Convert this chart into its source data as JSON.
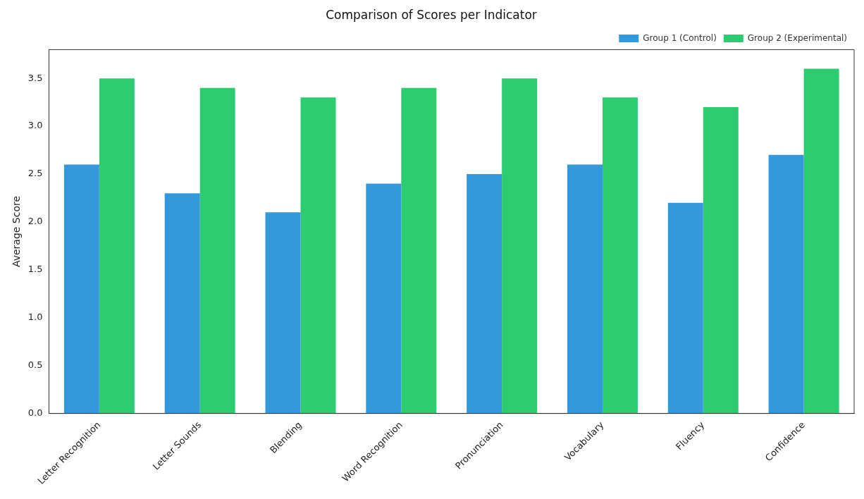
{
  "chart_data": {
    "type": "bar",
    "title": "Comparison of Scores per Indicator",
    "ylabel": "Average Score",
    "categories": [
      "Letter Recognition",
      "Letter Sounds",
      "Blending",
      "Word Recognition",
      "Pronunciation",
      "Vocabulary",
      "Fluency",
      "Confidence"
    ],
    "series": [
      {
        "name": "Group 1 (Control)",
        "color": "#3498db",
        "values": [
          2.6,
          2.3,
          2.1,
          2.4,
          2.5,
          2.6,
          2.2,
          2.7
        ]
      },
      {
        "name": "Group 2 (Experimental)",
        "color": "#2ecc71",
        "values": [
          3.5,
          3.4,
          3.3,
          3.4,
          3.5,
          3.3,
          3.2,
          3.6
        ]
      }
    ],
    "ylim": [
      0,
      3.8
    ],
    "yticks": [
      {
        "value": 0,
        "label": "0.0"
      },
      0.5,
      {
        "value": 1,
        "label": "1.0"
      },
      1.5,
      {
        "value": 2,
        "label": "2.0"
      },
      2.5,
      {
        "value": 3,
        "label": "3.0"
      },
      3.5
    ],
    "grid": false,
    "legend": "top right"
  }
}
